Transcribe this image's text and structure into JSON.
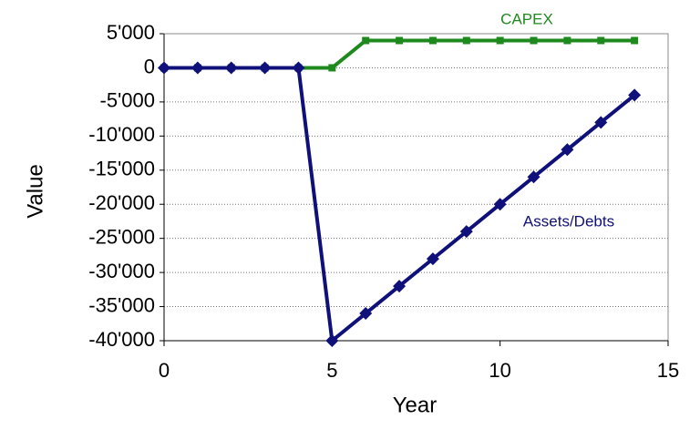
{
  "chart_data": {
    "type": "line",
    "xlabel": "Year",
    "ylabel": "Value",
    "x": [
      0,
      1,
      2,
      3,
      4,
      5,
      6,
      7,
      8,
      9,
      10,
      11,
      12,
      13,
      14
    ],
    "series": [
      {
        "name": "CAPEX",
        "color": "#1e8a1e",
        "marker": "square",
        "values": [
          0,
          0,
          0,
          0,
          0,
          0,
          4000,
          4000,
          4000,
          4000,
          4000,
          4000,
          4000,
          4000,
          4000
        ]
      },
      {
        "name": "Assets/Debts",
        "color": "#10107a",
        "marker": "diamond",
        "values": [
          0,
          0,
          0,
          0,
          0,
          -40000,
          -36000,
          -32000,
          -28000,
          -24000,
          -20000,
          -16000,
          -12000,
          -8000,
          -4000
        ]
      }
    ],
    "xlim": [
      0,
      15
    ],
    "xticks": [
      0,
      5,
      10,
      15
    ],
    "ylim": [
      -40000,
      5000
    ],
    "yticks": [
      {
        "value": 5000,
        "label": "5'000"
      },
      0,
      {
        "value": -5000,
        "label": "-5'000"
      },
      {
        "value": -10000,
        "label": "-10'000"
      },
      {
        "value": -15000,
        "label": "-15'000"
      },
      {
        "value": -20000,
        "label": "-20'000"
      },
      {
        "value": -25000,
        "label": "-25'000"
      },
      {
        "value": -30000,
        "label": "-30'000"
      },
      {
        "value": -35000,
        "label": "-35'000"
      },
      {
        "value": -40000,
        "label": "-40'000"
      }
    ],
    "grid": true
  }
}
